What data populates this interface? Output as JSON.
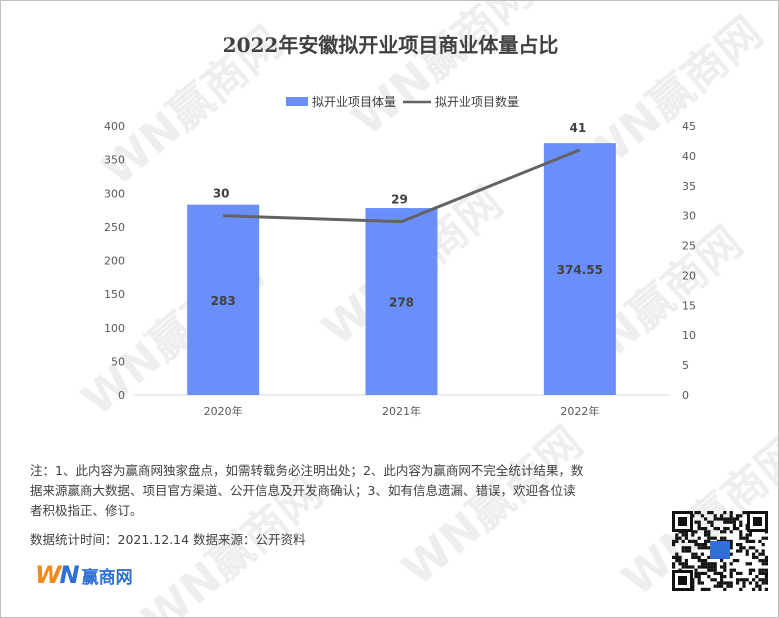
{
  "title": "2022年安徽拟开业项目商业体量占比",
  "legend": {
    "bar_name": "拟开业项目体量",
    "line_name": "拟开业项目数量",
    "position": "top-center"
  },
  "chart_data": {
    "type": "bar",
    "title": "2022年安徽拟开业项目商业体量占比",
    "categories": [
      "2020年",
      "2021年",
      "2022年"
    ],
    "series": [
      {
        "name": "拟开业项目体量",
        "type": "bar",
        "axis": "left",
        "values": [
          283,
          278,
          374.55
        ],
        "labels": [
          "283",
          "278",
          "374.55"
        ],
        "color": "#6a8ffb"
      },
      {
        "name": "拟开业项目数量",
        "type": "line",
        "axis": "right",
        "values": [
          30,
          29,
          41
        ],
        "labels": [
          "30",
          "29",
          "41"
        ],
        "color": "#636363"
      }
    ],
    "y_left": {
      "min": 0,
      "max": 400,
      "step": 50
    },
    "y_right": {
      "min": 0,
      "max": 45,
      "step": 5
    },
    "grid": false,
    "legend_position": "top-center"
  },
  "notes": {
    "line1": "注：1、此内容为赢商网独家盘点，如需转载务必注明出处；2、此内容为赢商网不完全统计结果，数",
    "line2": "据来源赢商大数据、项目官方渠道、公开信息及开发商确认；3、如有信息遗漏、错误，欢迎各位读",
    "line3": "者积极指正、修订。"
  },
  "source": "数据统计时间：2021.12.14  数据来源：公开资料",
  "logo": {
    "mark_w": "W",
    "mark_n": "N",
    "text": "赢商网"
  },
  "watermark_text": "WN赢商网",
  "colors": {
    "bar": "#6a8ffb",
    "line": "#636363",
    "axis_text": "#595959",
    "title": "#404040"
  }
}
